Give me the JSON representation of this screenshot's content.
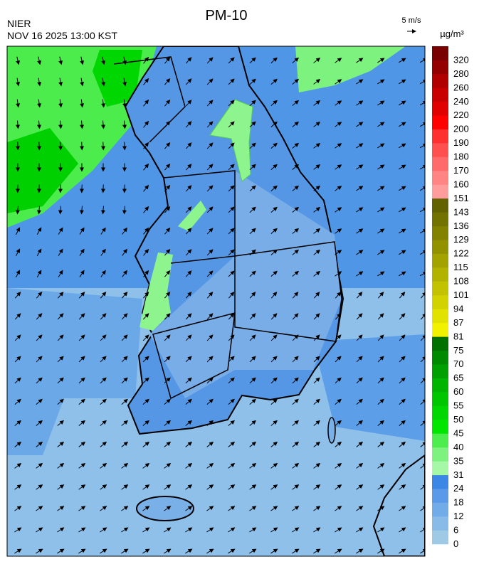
{
  "header": {
    "title": "PM-10",
    "agency": "NIER",
    "datetime": "NOV 16 2025 13:00 KST"
  },
  "wind_scale": {
    "label": "5 m/s"
  },
  "colorbar": {
    "unit": "µg/m³",
    "labels": [
      0,
      6,
      12,
      18,
      24,
      31,
      35,
      40,
      45,
      50,
      55,
      60,
      65,
      70,
      75,
      81,
      87,
      94,
      101,
      108,
      115,
      122,
      129,
      136,
      143,
      151,
      160,
      170,
      180,
      190,
      200,
      220,
      240,
      260,
      280,
      320
    ],
    "colors": [
      "#9ecae6",
      "#88bbe8",
      "#72ace8",
      "#5a9ae8",
      "#3c86e6",
      "#a6f7a6",
      "#7ef27e",
      "#4ded4d",
      "#00e600",
      "#00d600",
      "#00c600",
      "#00b400",
      "#00a000",
      "#008a00",
      "#007000",
      "#f2f200",
      "#e2e200",
      "#d2d200",
      "#c2c200",
      "#b2b200",
      "#a2a200",
      "#929200",
      "#828200",
      "#727200",
      "#626200",
      "#ff9c9c",
      "#ff8484",
      "#ff6a6a",
      "#ff5050",
      "#ff3030",
      "#ff0000",
      "#e00000",
      "#c80000",
      "#b00000",
      "#940000",
      "#780000"
    ]
  }
}
